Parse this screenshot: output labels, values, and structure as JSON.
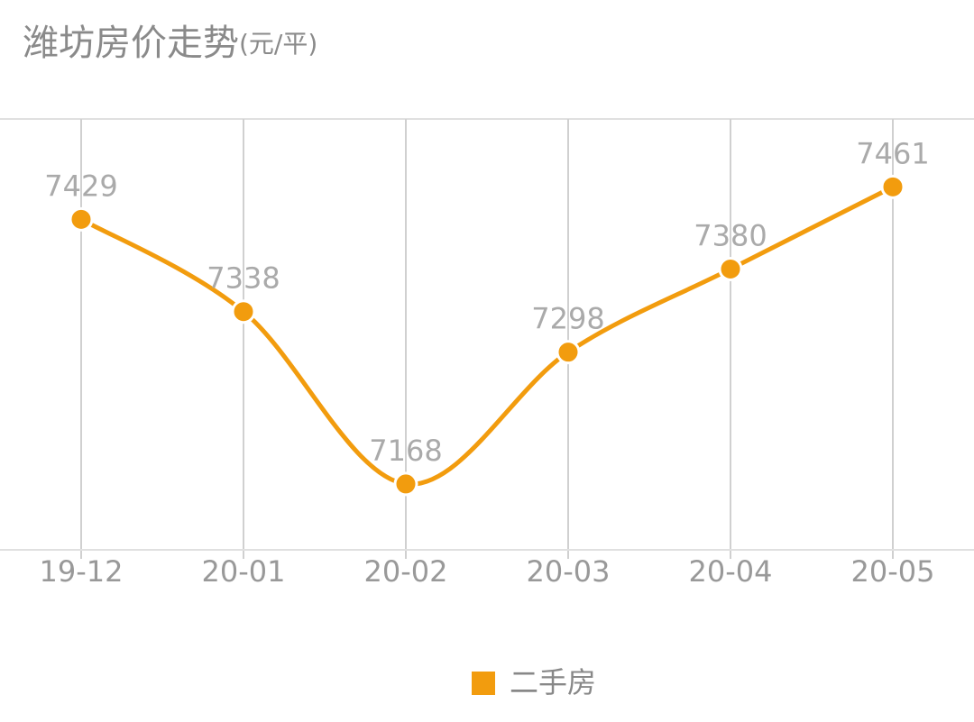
{
  "chart_data": {
    "type": "line",
    "title": "潍坊房价走势",
    "unit": "(元/平)",
    "categories": [
      "19-12",
      "20-01",
      "20-02",
      "20-03",
      "20-04",
      "20-05"
    ],
    "series": [
      {
        "name": "二手房",
        "color": "#f29c0e",
        "values": [
          7429,
          7338,
          7168,
          7298,
          7380,
          7461
        ]
      }
    ],
    "ylim": [
      7103,
      7528
    ],
    "grid": true,
    "smooth": true,
    "legend": "bottom"
  }
}
